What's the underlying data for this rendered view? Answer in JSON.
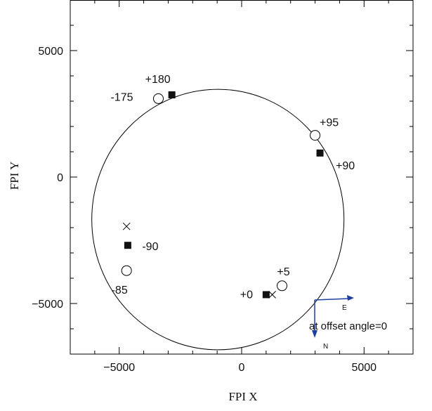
{
  "chart_data": {
    "type": "scatter",
    "title": "",
    "xlabel": "FPI X",
    "ylabel": "FPI Y",
    "xlim": [
      -7000,
      7000
    ],
    "ylim": [
      -7000,
      7000
    ],
    "xticks": [
      -5000,
      0,
      5000
    ],
    "yticks": [
      -5000,
      0,
      5000
    ],
    "tick_labels": {
      "x": [
        "−5000",
        "0",
        "5000"
      ],
      "y": [
        "−5000",
        "0",
        "5000"
      ]
    },
    "grid": false,
    "circle": {
      "cx": -970,
      "cy": -1680,
      "r": 5150
    },
    "series": [
      {
        "marker": "filled-square",
        "points": [
          {
            "x": -2850,
            "y": 3250,
            "label": "+180"
          },
          {
            "x": 3200,
            "y": 950,
            "label": "+90"
          },
          {
            "x": -4650,
            "y": -2700,
            "label": "-90"
          },
          {
            "x": 1000,
            "y": -4650,
            "label": "+0"
          }
        ]
      },
      {
        "marker": "open-circle",
        "points": [
          {
            "x": -3400,
            "y": 3100,
            "label": "-175"
          },
          {
            "x": 3000,
            "y": 1650,
            "label": "+95"
          },
          {
            "x": -4700,
            "y": -3700,
            "label": "-85"
          },
          {
            "x": 1650,
            "y": -4300,
            "label": "+5"
          }
        ]
      },
      {
        "marker": "x",
        "points": [
          {
            "x": -4700,
            "y": -1950
          },
          {
            "x": 1250,
            "y": -4650
          }
        ]
      }
    ],
    "compass": {
      "labels": [
        "E",
        "N"
      ],
      "note": "at offset angle=0",
      "color": "#1f3fa0"
    }
  }
}
